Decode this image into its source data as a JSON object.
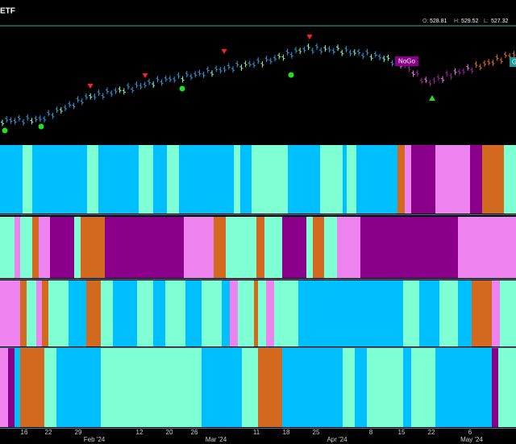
{
  "header": {
    "title": "ETF",
    "ohlc": [
      {
        "label": "O:",
        "value": 528.81
      },
      {
        "label": "H:",
        "value": 529.52
      },
      {
        "label": "L:",
        "value": 527.32
      }
    ]
  },
  "annotations": {
    "nogo": "NoGo",
    "go": "G"
  },
  "x_axis": {
    "days": [
      "16",
      "22",
      "29",
      "12",
      "20",
      "26",
      "11",
      "18",
      "25",
      "8",
      "15",
      "22",
      "6"
    ],
    "months": [
      "Feb '24",
      "Mar '24",
      "Apr '24",
      "May '24"
    ]
  }
}
